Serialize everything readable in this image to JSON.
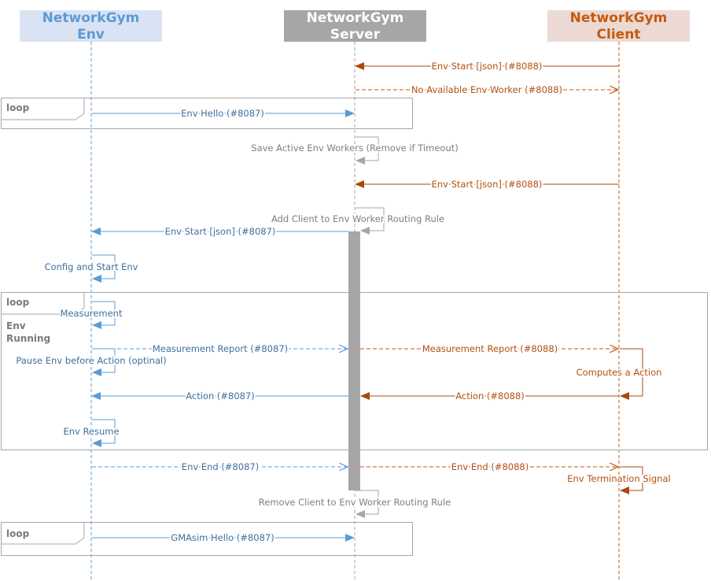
{
  "participants": {
    "env": {
      "line1": "NetworkGym",
      "line2": "Env"
    },
    "server": {
      "line1": "NetworkGym",
      "line2": "Server"
    },
    "client": {
      "line1": "NetworkGym",
      "line2": "Client"
    }
  },
  "fragments": {
    "loop1": {
      "label": "loop"
    },
    "loop2": {
      "label": "loop",
      "guard_line1": "Env",
      "guard_line2": "Running"
    },
    "loop3": {
      "label": "loop"
    }
  },
  "messages": {
    "m1": "Env Start [json] (#8088)",
    "m2": "No Available Env Worker (#8088)",
    "m3": "Env Hello (#8087)",
    "m4": "Save Active Env Workers (Remove if Timeout)",
    "m5": "Env Start [json] (#8088)",
    "m6": "Add Client to Env Worker Routing Rule",
    "m7": "Env Start [json] (#8087)",
    "m8": "Config and Start Env",
    "m9": "Measurement",
    "m10": "Measurement Report (#8087)",
    "m11": "Measurement Report (#8088)",
    "m12": "Pause Env before Action (optinal)",
    "m13": "Computes a Action",
    "m14": "Action (#8087)",
    "m15": "Action (#8088)",
    "m16": "Env Resume",
    "m17": "Env End (#8087)",
    "m18": "Env End (#8088)",
    "m19": "Env Termination Signal",
    "m20": "Remove Client to Env Worker Routing Rule",
    "m21": "GMAsim Hello (#8087)"
  },
  "colors": {
    "env": "#5b9bd5",
    "env_text": "#3f6f9e",
    "env_header_bg": "#dae3f3",
    "server": "#a6a6a6",
    "server_text": "#7f7f7f",
    "server_header_bg": "#a6a6a6",
    "client": "#c55a11",
    "client_text": "#b2500f",
    "client_header_bg": "#ecd9d3"
  }
}
